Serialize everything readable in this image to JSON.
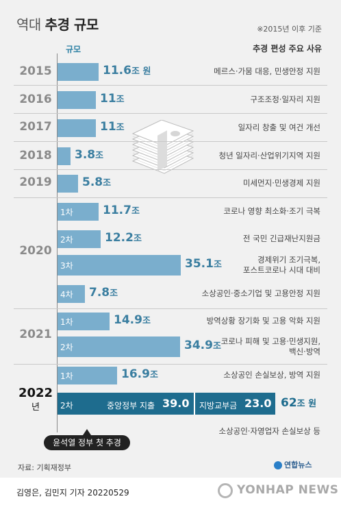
{
  "title_light": "역대",
  "title_bold": "추경 규모",
  "note": "※2015년 이후 기준",
  "header_scale": "규모",
  "header_reason": "추경 편성 주요 사유",
  "colors": {
    "bar_light": "#7aaecd",
    "bar_dark": "#1e6c8e",
    "value_text": "#3a7ea0",
    "year_gray": "#8a8a8a"
  },
  "chart_data": {
    "type": "bar",
    "orientation": "horizontal",
    "unit": "조 원",
    "rows": [
      {
        "year": "2015",
        "phase": "",
        "value": 11.6,
        "label_num": "11.6",
        "label_unit": "조 원",
        "reason": "메르스·가뭄 대응, 민생안정 지원"
      },
      {
        "year": "2016",
        "phase": "",
        "value": 11,
        "label_num": "11",
        "label_unit": "조",
        "reason": "구조조정·일자리 지원"
      },
      {
        "year": "2017",
        "phase": "",
        "value": 11,
        "label_num": "11",
        "label_unit": "조",
        "reason": "일자리 창출 및 여건 개선"
      },
      {
        "year": "2018",
        "phase": "",
        "value": 3.8,
        "label_num": "3.8",
        "label_unit": "조",
        "reason": "청년 일자리·산업위기지역 지원"
      },
      {
        "year": "2019",
        "phase": "",
        "value": 5.8,
        "label_num": "5.8",
        "label_unit": "조",
        "reason": "미세먼지·민생경제 지원"
      },
      {
        "year": "2020",
        "phase": "1차",
        "value": 11.7,
        "label_num": "11.7",
        "label_unit": "조",
        "reason": "코로나 영향 최소화·조기 극복"
      },
      {
        "year": "2020",
        "phase": "2차",
        "value": 12.2,
        "label_num": "12.2",
        "label_unit": "조",
        "reason": "전 국민 긴급재난지원금"
      },
      {
        "year": "2020",
        "phase": "3차",
        "value": 35.1,
        "label_num": "35.1",
        "label_unit": "조",
        "reason": "경제위기 조기극복, 포스트코로나 시대 대비"
      },
      {
        "year": "2020",
        "phase": "4차",
        "value": 7.8,
        "label_num": "7.8",
        "label_unit": "조",
        "reason": "소상공인·중소기업 및 고용안정 지원"
      },
      {
        "year": "2021",
        "phase": "1차",
        "value": 14.9,
        "label_num": "14.9",
        "label_unit": "조",
        "reason": "방역상황 장기화 및 고용 악화 지원"
      },
      {
        "year": "2021",
        "phase": "2차",
        "value": 34.9,
        "label_num": "34.9",
        "label_unit": "조",
        "reason": "코로나 피해 및 고용·민생지원, 백신·방역"
      },
      {
        "year": "2022",
        "phase": "1차",
        "value": 16.9,
        "label_num": "16.9",
        "label_unit": "조",
        "reason": "소상공인 손실보상, 방역 지원"
      },
      {
        "year": "2022",
        "phase": "2차",
        "value": 62,
        "label_num": "62",
        "label_unit": "조 원",
        "reason": "소상공인·자영업자 손실보상 등",
        "parts": [
          {
            "name": "중앙정부 지출",
            "value": 39.0
          },
          {
            "name": "지방교부금",
            "value": 23.0
          }
        ]
      }
    ]
  },
  "year_labels": {
    "y2015": "2015",
    "y2016": "2016",
    "y2017": "2017",
    "y2018": "2018",
    "y2019": "2019",
    "y2020": "2020",
    "y2021": "2021",
    "y2022": "2022",
    "y2022_suffix": "년"
  },
  "combo": {
    "phase": "2차",
    "central_label": "중앙정부 지출",
    "central_value": "39.0",
    "local_label": "지방교부금",
    "local_value": "23.0",
    "total_num": "62",
    "total_unit": "조 원"
  },
  "callout": "윤석열 정부 첫 추경",
  "source": "자료: 기획재정부",
  "logo": "연합뉴스",
  "byline": "김영은, 김민지 기자  20220529",
  "watermark": "YONHAP NEWS"
}
